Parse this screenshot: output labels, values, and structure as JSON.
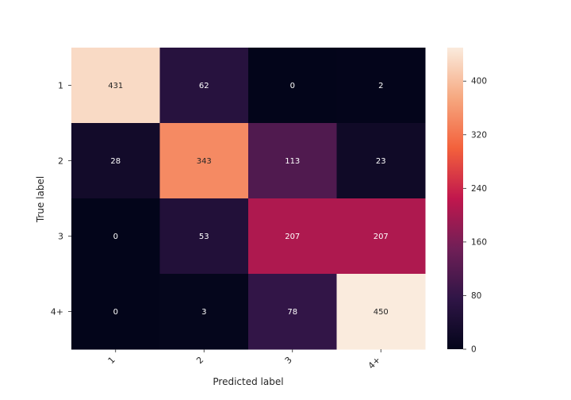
{
  "chart_data": {
    "type": "heatmap",
    "title": "",
    "xlabel": "Predicted label",
    "ylabel": "True label",
    "x_categories": [
      "1",
      "2",
      "3",
      "4+"
    ],
    "y_categories": [
      "1",
      "2",
      "3",
      "4+"
    ],
    "values": [
      [
        431,
        62,
        0,
        2
      ],
      [
        28,
        343,
        113,
        23
      ],
      [
        0,
        53,
        207,
        207
      ],
      [
        0,
        3,
        78,
        450
      ]
    ],
    "colorbar": {
      "range": [
        0,
        450
      ],
      "ticks": [
        "0",
        "80",
        "160",
        "240",
        "320",
        "400"
      ],
      "colormap": [
        "#03051a",
        "#2f1546",
        "#701f57",
        "#c1174d",
        "#f3613c",
        "#f6a880",
        "#faebdd"
      ]
    },
    "grid": false,
    "legend": "colorbar-right"
  }
}
